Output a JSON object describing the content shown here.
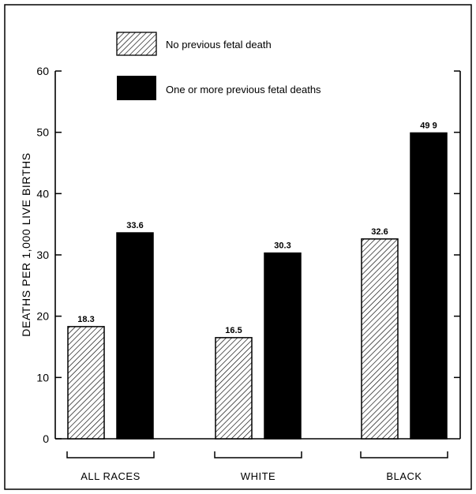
{
  "chart_data": {
    "type": "bar",
    "categories": [
      "ALL RACES",
      "WHITE",
      "BLACK"
    ],
    "series": [
      {
        "name": "No previous fetal death",
        "values": [
          18.3,
          16.5,
          32.6
        ],
        "labels": [
          "18.3",
          "16.5",
          "32.6"
        ],
        "pattern": "hatched"
      },
      {
        "name": "One or more previous fetal deaths",
        "values": [
          33.6,
          30.3,
          49.9
        ],
        "labels": [
          "33.6",
          "30.3",
          "49 9"
        ],
        "pattern": "solid",
        "color": "#000000"
      }
    ],
    "ylabel": "DEATHS PER 1,000 LIVE BIRTHS",
    "xlabel": "",
    "ylim": [
      0,
      60
    ],
    "yticks": [
      "0",
      "10",
      "20",
      "30",
      "40",
      "50",
      "60"
    ],
    "grid": false,
    "legend_position": "top-left"
  }
}
